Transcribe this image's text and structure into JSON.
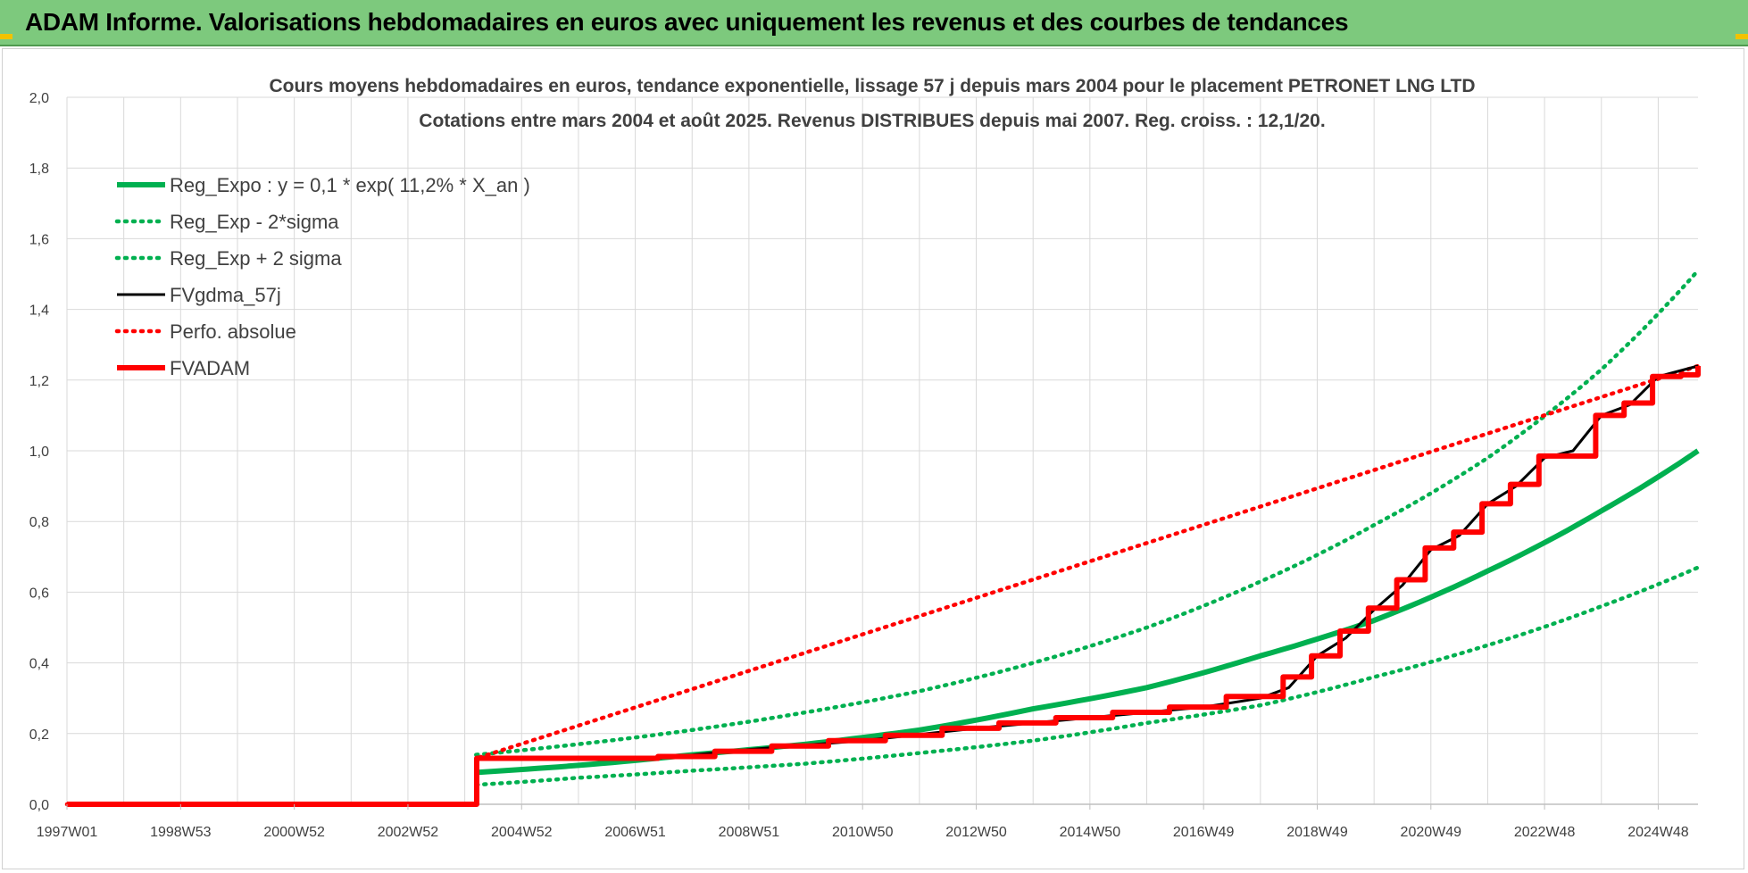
{
  "banner": {
    "title": "ADAM Informe. Valorisations hebdomadaires en euros avec uniquement les revenus et des courbes de tendances"
  },
  "colors": {
    "banner_bg": "#7dc97d",
    "trend_green": "#00b050",
    "adam_red": "#ff0000",
    "gdma_black": "#000000",
    "grid": "#d9d9d9"
  },
  "chart_data": {
    "type": "line",
    "title": "Cours moyens hebdomadaires en euros, tendance exponentielle, lissage 57 j depuis mars 2004 pour le placement PETRONET LNG LTD",
    "subtitle": "Cotations entre mars 2004 et août 2025.  Revenus DISTRIBUES depuis mai 2007. Reg. croiss. : 12,1/20.",
    "xlabel": "",
    "ylabel": "",
    "x_tick_labels": [
      "1997W01",
      "1998W53",
      "2000W52",
      "2002W52",
      "2004W52",
      "2006W51",
      "2008W51",
      "2010W50",
      "2012W50",
      "2014W50",
      "2016W49",
      "2018W49",
      "2020W49",
      "2022W48",
      "2024W48"
    ],
    "y_tick_labels": [
      "0,0",
      "0,2",
      "0,4",
      "0,6",
      "0,8",
      "1,0",
      "1,2",
      "1,4",
      "1,6",
      "1,8",
      "2,0"
    ],
    "ylim": [
      0,
      2.0
    ],
    "xlim": [
      1997.0,
      2025.7
    ],
    "grid": true,
    "legend_position": "top-left",
    "legend": [
      "Reg_Expo : y = 0,1 * exp( 11,2% *  X_an )",
      "Reg_Exp - 2*sigma",
      "Reg_Exp + 2 sigma",
      "FVgdma_57j",
      "Perfo. absolue",
      "FVADAM"
    ],
    "series": [
      {
        "name": "Reg_Expo : y = 0,1 * exp( 11,2% *  X_an )",
        "color": "#00b050",
        "style": "solid",
        "x": [
          2004.2,
          2006.0,
          2008.0,
          2010.0,
          2012.0,
          2014.0,
          2016.0,
          2018.0,
          2020.0,
          2022.0,
          2024.0,
          2025.7
        ],
        "y": [
          0.09,
          0.11,
          0.14,
          0.17,
          0.21,
          0.27,
          0.33,
          0.42,
          0.52,
          0.66,
          0.83,
          1.0
        ]
      },
      {
        "name": "Reg_Exp - 2*sigma",
        "color": "#00b050",
        "style": "dotted",
        "x": [
          2004.2,
          2006.0,
          2008.0,
          2010.0,
          2012.0,
          2014.0,
          2016.0,
          2018.0,
          2020.0,
          2022.0,
          2024.0,
          2025.7
        ],
        "y": [
          0.055,
          0.075,
          0.095,
          0.115,
          0.145,
          0.18,
          0.23,
          0.28,
          0.36,
          0.45,
          0.56,
          0.67
        ]
      },
      {
        "name": "Reg_Exp + 2 sigma",
        "color": "#00b050",
        "style": "dotted",
        "x": [
          2004.2,
          2006.0,
          2008.0,
          2010.0,
          2012.0,
          2014.0,
          2016.0,
          2018.0,
          2020.0,
          2022.0,
          2024.0,
          2025.7
        ],
        "y": [
          0.14,
          0.17,
          0.21,
          0.26,
          0.32,
          0.4,
          0.5,
          0.63,
          0.79,
          0.98,
          1.23,
          1.51
        ]
      },
      {
        "name": "FVgdma_57j",
        "color": "#000000",
        "style": "solid",
        "x": [
          1997.0,
          2004.2,
          2004.21,
          2007.4,
          2009.0,
          2011.0,
          2013.0,
          2015.0,
          2017.0,
          2018.0,
          2018.5,
          2019.0,
          2019.5,
          2020.0,
          2020.5,
          2021.0,
          2021.5,
          2022.0,
          2022.5,
          2023.0,
          2023.5,
          2024.0,
          2024.5,
          2025.0,
          2025.7
        ],
        "y": [
          0.0,
          0.0,
          0.13,
          0.13,
          0.155,
          0.18,
          0.215,
          0.245,
          0.275,
          0.3,
          0.33,
          0.42,
          0.47,
          0.55,
          0.62,
          0.72,
          0.76,
          0.85,
          0.9,
          0.98,
          1.0,
          1.1,
          1.13,
          1.21,
          1.24
        ]
      },
      {
        "name": "Perfo. absolue",
        "color": "#ff0000",
        "style": "dotted",
        "x": [
          1997.0,
          2004.2,
          2004.21,
          2025.7
        ],
        "y": [
          0.0,
          0.0,
          0.13,
          1.24
        ]
      },
      {
        "name": "FVADAM",
        "color": "#ff0000",
        "style": "solid",
        "step": true,
        "x": [
          1997.0,
          2004.2,
          2004.21,
          2007.4,
          2008.4,
          2009.4,
          2010.4,
          2011.4,
          2012.4,
          2013.4,
          2014.4,
          2015.4,
          2016.4,
          2017.4,
          2018.4,
          2018.9,
          2019.4,
          2019.9,
          2020.4,
          2020.9,
          2021.4,
          2021.9,
          2022.4,
          2022.9,
          2023.4,
          2023.9,
          2024.4,
          2024.9,
          2025.4,
          2025.7
        ],
        "y": [
          0.0,
          0.0,
          0.13,
          0.135,
          0.15,
          0.165,
          0.18,
          0.195,
          0.215,
          0.23,
          0.245,
          0.26,
          0.275,
          0.305,
          0.36,
          0.42,
          0.49,
          0.555,
          0.635,
          0.725,
          0.77,
          0.85,
          0.905,
          0.985,
          0.985,
          1.1,
          1.135,
          1.21,
          1.215,
          1.24
        ]
      }
    ]
  }
}
